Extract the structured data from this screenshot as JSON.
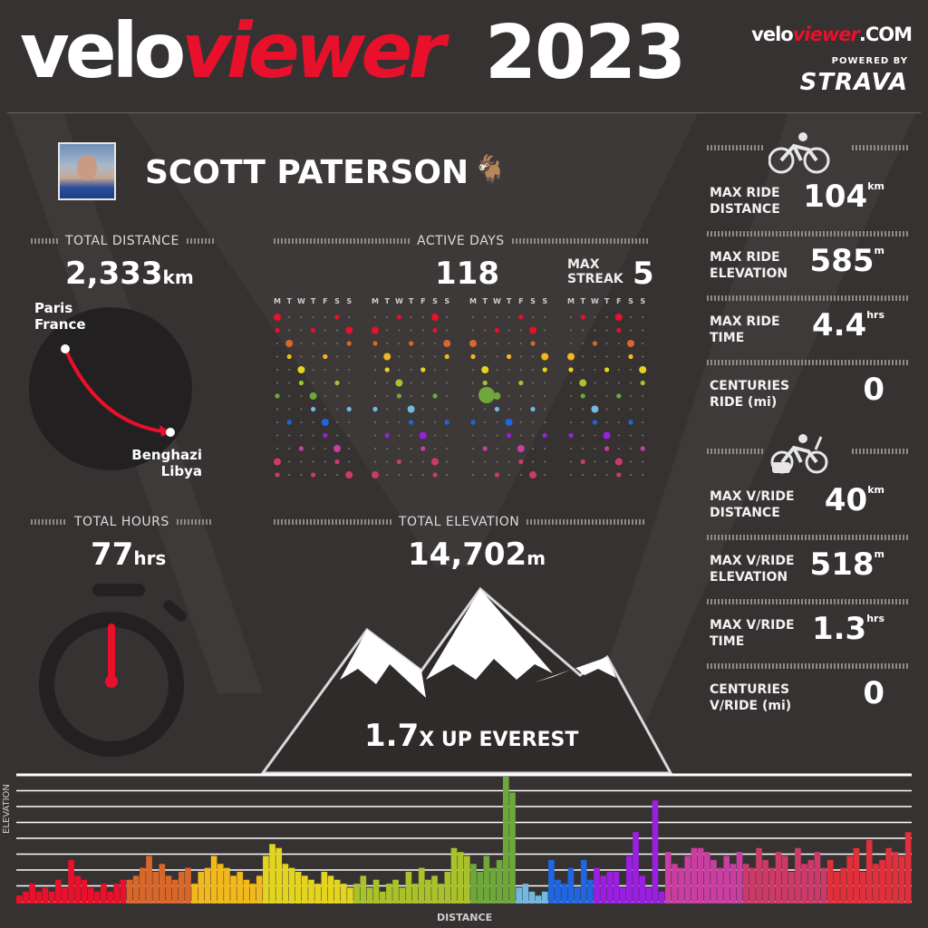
{
  "header": {
    "brand_velo": "velo",
    "brand_viewer": "viewer",
    "year": "2023",
    "site_velo": "velo",
    "site_viewer": "viewer",
    "site_com": ".COM",
    "powered_by": "POWERED BY",
    "strava": "STRAVA"
  },
  "athlete": {
    "name": "SCOTT PATERSON",
    "emoji": "🐐"
  },
  "total_distance": {
    "label": "TOTAL DISTANCE",
    "value": "2,333",
    "unit": "km",
    "from_city": "Paris",
    "from_country": "France",
    "to_city": "Benghazi",
    "to_country": "Libya"
  },
  "active_days": {
    "label": "ACTIVE DAYS",
    "value": "118",
    "streak_label_1": "MAX",
    "streak_label_2": "STREAK",
    "streak_value": "5",
    "weekday_letters": [
      "M",
      "T",
      "W",
      "T",
      "F",
      "S",
      "S"
    ]
  },
  "total_hours": {
    "label": "TOTAL HOURS",
    "value": "77",
    "unit": "hrs"
  },
  "total_elevation": {
    "label": "TOTAL ELEVATION",
    "value": "14,702",
    "unit": "m"
  },
  "everest": {
    "multiple": "1.7",
    "text": "X UP EVEREST"
  },
  "ride_stats": [
    {
      "label1": "MAX RIDE",
      "label2": "DISTANCE",
      "value": "104",
      "unit": "km"
    },
    {
      "label1": "MAX RIDE",
      "label2": "ELEVATION",
      "value": "585",
      "unit": "m"
    },
    {
      "label1": "MAX RIDE",
      "label2": "TIME",
      "value": "4.4",
      "unit": "hrs"
    },
    {
      "label1": "CENTURIES",
      "label2": "RIDE (mi)",
      "value": "0",
      "unit": ""
    }
  ],
  "vride_stats": [
    {
      "label1": "MAX V/RIDE",
      "label2": "DISTANCE",
      "value": "40",
      "unit": "km"
    },
    {
      "label1": "MAX V/RIDE",
      "label2": "ELEVATION",
      "value": "518",
      "unit": "m"
    },
    {
      "label1": "MAX V/RIDE",
      "label2": "TIME",
      "value": "1.3",
      "unit": "hrs"
    },
    {
      "label1": "CENTURIES",
      "label2": "V/RIDE (mi)",
      "value": "0",
      "unit": ""
    }
  ],
  "chart_data": {
    "type": "bar",
    "title": "",
    "xlabel": "DISTANCE",
    "ylabel": "ELEVATION",
    "month_colors": [
      "#e8102b",
      "#d9672a",
      "#f2b91c",
      "#e3d41f",
      "#a9c22b",
      "#6fa83a",
      "#74b8e0",
      "#1f66e0",
      "#9b1fe0",
      "#c93ea0",
      "#cc3a6a",
      "#e0303c"
    ],
    "months": [
      [
        2,
        3,
        5,
        3,
        4,
        3,
        6,
        4,
        11,
        7,
        6,
        4,
        3,
        5,
        3,
        5,
        6
      ],
      [
        6,
        7,
        9,
        12,
        8,
        10,
        7,
        6,
        8,
        9
      ],
      [
        5,
        8,
        9,
        12,
        10,
        9,
        7,
        8,
        6,
        5,
        7
      ],
      [
        12,
        15,
        14,
        10,
        9,
        8,
        7,
        6,
        5,
        8,
        7,
        6,
        5,
        4
      ],
      [
        5,
        7,
        4,
        6,
        3,
        5,
        6,
        4,
        8,
        5,
        9,
        6,
        7,
        5,
        8,
        14,
        13,
        12
      ],
      [
        10,
        8,
        12,
        9,
        11,
        32,
        28
      ],
      [
        4,
        5,
        3,
        2,
        3
      ],
      [
        11,
        6,
        5,
        9,
        4,
        11,
        6
      ],
      [
        9,
        7,
        8,
        8,
        4,
        12,
        18,
        7,
        4,
        26,
        3
      ],
      [
        13,
        10,
        9,
        12,
        14,
        14,
        13,
        11,
        9,
        12,
        10,
        13
      ],
      [
        10,
        9,
        14,
        11,
        9,
        13,
        12,
        8,
        14,
        10,
        11,
        13,
        9
      ],
      [
        11,
        8,
        9,
        12,
        14,
        8,
        16,
        10,
        11,
        14,
        13,
        12,
        18
      ]
    ]
  }
}
